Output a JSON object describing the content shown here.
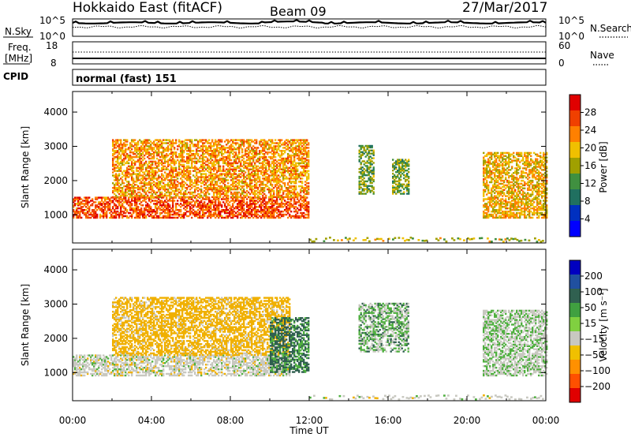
{
  "header": {
    "site": "Hokkaido East (fitACF)",
    "beam": "Beam 09",
    "date": "27/Mar/2017"
  },
  "noise_panel": {
    "left_label": "N.Sky",
    "right_label": "N.Search",
    "ticks": [
      "10^5",
      "10^0"
    ]
  },
  "freq_panel": {
    "left_label_line1": "Freq.",
    "left_label_line2": "[MHz]",
    "left_ticks": [
      "18",
      "8"
    ],
    "right_label": "Nave",
    "right_ticks": [
      "60",
      "0"
    ]
  },
  "cpid_panel": {
    "label": "CPID",
    "text": "normal (fast) 151"
  },
  "power_panel": {
    "ylabel": "Slant Range [km]",
    "colorbar_label": "Power [dB]",
    "colorbar_ticks": [
      "28",
      "24",
      "20",
      "16",
      "12",
      "8",
      "4"
    ],
    "colorbar_colors": [
      "#e00000",
      "#f04000",
      "#ff8000",
      "#f0c000",
      "#a0a000",
      "#409040",
      "#207060",
      "#0030c0",
      "#0000ff"
    ]
  },
  "velocity_panel": {
    "ylabel": "Slant Range [km]",
    "colorbar_label": "Velocity [m s⁻¹]",
    "colorbar_ticks": [
      "200",
      "100",
      "50",
      "15",
      "−15",
      "−50",
      "−100",
      "−200"
    ],
    "colorbar_colors": [
      "#0000c0",
      "#2050a0",
      "#306050",
      "#40a040",
      "#80d040",
      "#c8c8c0",
      "#f0c000",
      "#ff9000",
      "#ff5000",
      "#e00000"
    ]
  },
  "x_axis": {
    "label": "Time UT",
    "ticks": [
      "00:00",
      "04:00",
      "08:00",
      "12:00",
      "16:00",
      "20:00",
      "00:00"
    ]
  },
  "chart_data": [
    {
      "type": "heatmap",
      "title": "Power [dB]",
      "xlabel": "Time UT",
      "ylabel": "Slant Range [km]",
      "x_range_hours": [
        0,
        24
      ],
      "ylim": [
        180,
        4600
      ],
      "yticks": [
        1000,
        2000,
        3000,
        4000
      ],
      "zlim": [
        0,
        32
      ],
      "approx_echo_regions": [
        {
          "t_start": 0.0,
          "t_end": 12.0,
          "range_min": 900,
          "range_max": 1500,
          "power": 26
        },
        {
          "t_start": 2.0,
          "t_end": 12.0,
          "range_min": 1500,
          "range_max": 3200,
          "power": 22
        },
        {
          "t_start": 14.5,
          "t_end": 15.3,
          "range_min": 1600,
          "range_max": 3000,
          "power": 14
        },
        {
          "t_start": 16.2,
          "t_end": 17.0,
          "range_min": 1600,
          "range_max": 2600,
          "power": 14
        },
        {
          "t_start": 20.8,
          "t_end": 24.0,
          "range_min": 900,
          "range_max": 2800,
          "power": 20
        }
      ]
    },
    {
      "type": "heatmap",
      "title": "Velocity [m s⁻¹]",
      "xlabel": "Time UT",
      "ylabel": "Slant Range [km]",
      "x_range_hours": [
        0,
        24
      ],
      "ylim": [
        180,
        4600
      ],
      "yticks": [
        1000,
        2000,
        3000,
        4000
      ],
      "zlim": [
        -200,
        200
      ],
      "approx_echo_regions": [
        {
          "t_start": 0.0,
          "t_end": 11.0,
          "range_min": 900,
          "range_max": 1500,
          "velocity": 0
        },
        {
          "t_start": 2.0,
          "t_end": 11.0,
          "range_min": 1500,
          "range_max": 3200,
          "velocity": -30
        },
        {
          "t_start": 10.0,
          "t_end": 12.0,
          "range_min": 1000,
          "range_max": 2600,
          "velocity": 40
        },
        {
          "t_start": 14.5,
          "t_end": 17.0,
          "range_min": 1600,
          "range_max": 3000,
          "velocity": 20
        },
        {
          "t_start": 20.8,
          "t_end": 24.0,
          "range_min": 900,
          "range_max": 2800,
          "velocity": 10
        }
      ]
    }
  ]
}
